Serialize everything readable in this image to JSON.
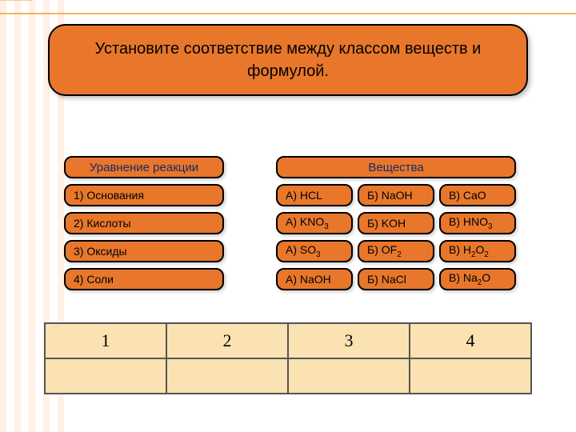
{
  "colors": {
    "chip_bg": "#e8772b",
    "chip_border": "#000000",
    "header_text": "#1a2a66",
    "table_bg": "#fbe2b3",
    "table_border": "#555555",
    "accent_line": "#f4b45a",
    "body_bg": "#ffffff"
  },
  "title": "Установите соответствие между классом веществ и формулой.",
  "left": {
    "header": "Уравнение реакции",
    "items": [
      "1)  Основания",
      "2)  Кислоты",
      "3)  Оксиды",
      "4)  Соли"
    ]
  },
  "right": {
    "header": "Вещества",
    "rows": [
      {
        "a": "А)  HCL",
        "b": "Б) NaOH",
        "v": "В)  CaO"
      },
      {
        "a": "А)  KNO",
        "a_sub": "3",
        "b": "Б) KOH",
        "v": "В)  HNO",
        "v_sub": "3"
      },
      {
        "a": "А)  SO",
        "a_sub": "3",
        "b": "Б) OF",
        "b_sub": "2",
        "v": "В)  H",
        "v_sub": "2",
        "v_tail": "O",
        "v_sub2": "2"
      },
      {
        "a": "А)  NaOH",
        "b": "Б) NaCl",
        "v": "В)  Na",
        "v_sub": "2",
        "v_tail": "O"
      }
    ]
  },
  "answer_headers": [
    "1",
    "2",
    "3",
    "4"
  ]
}
